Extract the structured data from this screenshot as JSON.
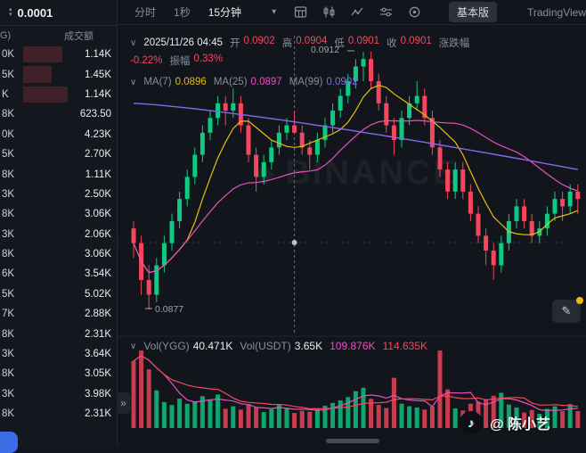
{
  "colors": {
    "up": "#0ecb81",
    "down": "#f6465d",
    "ma7": "#e8bd0d",
    "ma25": "#e750c0",
    "ma99": "#8567e8",
    "vol_ma1": "#e750c0",
    "vol_ma2": "#f6465d",
    "accent_yellow": "#f0b90b",
    "text": "#e9edf2",
    "muted": "#848e9c"
  },
  "icons": {
    "chevron_down": "∨",
    "caret_down": "▾",
    "sort_up": "▴",
    "sort_down": "▾",
    "expand": "»",
    "edit": "✎",
    "note": "♪",
    "diamond": "◆"
  },
  "left_panel": {
    "tick_value": "0.0001",
    "header": {
      "col1_fragment": "G)",
      "col2": "成交额"
    },
    "rows": [
      {
        "amount_fragment": "0K",
        "turnover": "1.14K",
        "depth": 44
      },
      {
        "amount_fragment": "5K",
        "turnover": "1.45K",
        "depth": 32
      },
      {
        "amount_fragment": "K",
        "turnover": "1.14K",
        "depth": 50
      },
      {
        "amount_fragment": "8K",
        "turnover": "623.50",
        "depth": 0
      },
      {
        "amount_fragment": "0K",
        "turnover": "4.23K",
        "depth": 0
      },
      {
        "amount_fragment": "5K",
        "turnover": "2.70K",
        "depth": 0
      },
      {
        "amount_fragment": "8K",
        "turnover": "1.11K",
        "depth": 0
      },
      {
        "amount_fragment": "3K",
        "turnover": "2.50K",
        "depth": 0
      },
      {
        "amount_fragment": "8K",
        "turnover": "3.06K",
        "depth": 0
      },
      {
        "amount_fragment": "3K",
        "turnover": "2.06K",
        "depth": 0
      },
      {
        "amount_fragment": "8K",
        "turnover": "3.06K",
        "depth": 0
      },
      {
        "amount_fragment": "6K",
        "turnover": "3.54K",
        "depth": 0
      },
      {
        "amount_fragment": "5K",
        "turnover": "5.02K",
        "depth": 0
      },
      {
        "amount_fragment": "7K",
        "turnover": "2.88K",
        "depth": 0
      },
      {
        "amount_fragment": "8K",
        "turnover": "2.31K",
        "depth": 0
      },
      {
        "amount_fragment": "3K",
        "turnover": "3.64K",
        "depth": 0
      },
      {
        "amount_fragment": "8K",
        "turnover": "3.05K",
        "depth": 0
      },
      {
        "amount_fragment": "3K",
        "turnover": "3.98K",
        "depth": 0
      },
      {
        "amount_fragment": "8K",
        "turnover": "2.31K",
        "depth": 0
      }
    ]
  },
  "toolbar": {
    "intervals": [
      "分时",
      "1秒",
      "15分钟"
    ],
    "selected": "15分钟",
    "basic_button": "基本版",
    "trading_tab": "TradingView"
  },
  "ohlc": {
    "datetime": "2025/11/26 04:45",
    "open_label": "开",
    "open": "0.0902",
    "high_label": "高",
    "high": "0.0904",
    "low_label": "低",
    "low": "0.0901",
    "close_label": "收",
    "close": "0.0901",
    "change_label": "涨跌幅",
    "change": "-0.22%",
    "amplitude_label": "振幅",
    "amplitude": "0.33%"
  },
  "ma": {
    "ma7_label": "MA(7)",
    "ma7": "0.0896",
    "ma25_label": "MA(25)",
    "ma25": "0.0897",
    "ma99_label": "MA(99)",
    "ma99": "0.0902"
  },
  "annotations": {
    "high": "0.0912",
    "low": "0.0877",
    "watermark": "BINANCE"
  },
  "volume_header": {
    "vol_label": "Vol(YGG)",
    "vol": "40.471K",
    "vol_usdt_label": "Vol(USDT)",
    "vol_usdt": "3.65K",
    "vol_ma1": "109.876K",
    "vol_ma2": "114.635K"
  },
  "watermark_badge": {
    "text": "@ 陈小艺"
  },
  "chart_data": {
    "type": "candlestick",
    "interval": "15分钟",
    "price_range": [
      0.0875,
      0.0914
    ],
    "marked_high": 0.0912,
    "marked_low": 0.0877,
    "crosshair_index": 21,
    "candles_format": "[open, high, low, close, volume_k]",
    "candles": [
      [
        0.0888,
        0.0889,
        0.0884,
        0.0886,
        160
      ],
      [
        0.0886,
        0.0887,
        0.0879,
        0.0881,
        185
      ],
      [
        0.0881,
        0.0883,
        0.0877,
        0.0879,
        140
      ],
      [
        0.0879,
        0.0884,
        0.0878,
        0.0883,
        90
      ],
      [
        0.0883,
        0.0887,
        0.0882,
        0.0886,
        62
      ],
      [
        0.0886,
        0.089,
        0.0885,
        0.0889,
        55
      ],
      [
        0.0889,
        0.0893,
        0.0888,
        0.0892,
        70
      ],
      [
        0.0892,
        0.0896,
        0.0891,
        0.0895,
        58
      ],
      [
        0.0895,
        0.0899,
        0.0894,
        0.0898,
        64
      ],
      [
        0.0898,
        0.0902,
        0.0897,
        0.0901,
        76
      ],
      [
        0.0901,
        0.0904,
        0.09,
        0.0903,
        68
      ],
      [
        0.0903,
        0.0906,
        0.0902,
        0.0905,
        80
      ],
      [
        0.0905,
        0.0906,
        0.0902,
        0.0904,
        46
      ],
      [
        0.0904,
        0.0907,
        0.0903,
        0.0905,
        52
      ],
      [
        0.0905,
        0.0906,
        0.0901,
        0.0902,
        44
      ],
      [
        0.0902,
        0.0903,
        0.0897,
        0.0898,
        57
      ],
      [
        0.0898,
        0.0899,
        0.0893,
        0.0895,
        49
      ],
      [
        0.0895,
        0.0898,
        0.0894,
        0.0897,
        38
      ],
      [
        0.0897,
        0.09,
        0.0896,
        0.0899,
        45
      ],
      [
        0.0899,
        0.0902,
        0.0898,
        0.0901,
        56
      ],
      [
        0.0901,
        0.0903,
        0.09,
        0.0902,
        48
      ],
      [
        0.0902,
        0.0904,
        0.0901,
        0.0901,
        36
      ],
      [
        0.0901,
        0.0902,
        0.0898,
        0.0899,
        41
      ],
      [
        0.0899,
        0.09,
        0.0896,
        0.0898,
        39
      ],
      [
        0.0898,
        0.0901,
        0.0897,
        0.09,
        47
      ],
      [
        0.09,
        0.0903,
        0.0899,
        0.0902,
        53
      ],
      [
        0.0902,
        0.0905,
        0.0901,
        0.0904,
        60
      ],
      [
        0.0904,
        0.0907,
        0.0903,
        0.0906,
        66
      ],
      [
        0.0906,
        0.0909,
        0.0905,
        0.0908,
        74
      ],
      [
        0.0908,
        0.0911,
        0.0907,
        0.091,
        88
      ],
      [
        0.091,
        0.0912,
        0.0908,
        0.0911,
        96
      ],
      [
        0.0911,
        0.0912,
        0.0907,
        0.0908,
        70
      ],
      [
        0.0908,
        0.0909,
        0.0904,
        0.0905,
        55
      ],
      [
        0.0905,
        0.0906,
        0.0901,
        0.0902,
        48
      ],
      [
        0.0902,
        0.0903,
        0.0898,
        0.09,
        120
      ],
      [
        0.09,
        0.0904,
        0.0899,
        0.0903,
        58
      ],
      [
        0.0903,
        0.0906,
        0.0902,
        0.0905,
        52
      ],
      [
        0.0905,
        0.0908,
        0.0904,
        0.0906,
        49
      ],
      [
        0.0906,
        0.0907,
        0.0902,
        0.0903,
        44
      ],
      [
        0.0903,
        0.0904,
        0.0898,
        0.0899,
        51
      ],
      [
        0.0899,
        0.09,
        0.0895,
        0.0896,
        185
      ],
      [
        0.0896,
        0.0897,
        0.0892,
        0.0893,
        92
      ],
      [
        0.0893,
        0.0897,
        0.0892,
        0.0896,
        47
      ],
      [
        0.0896,
        0.0897,
        0.0892,
        0.0893,
        42
      ],
      [
        0.0893,
        0.0894,
        0.0889,
        0.089,
        58
      ],
      [
        0.089,
        0.0891,
        0.0886,
        0.0887,
        63
      ],
      [
        0.0887,
        0.0888,
        0.0883,
        0.0885,
        69
      ],
      [
        0.0885,
        0.0886,
        0.0881,
        0.0883,
        77
      ],
      [
        0.0883,
        0.0887,
        0.0882,
        0.0886,
        84
      ],
      [
        0.0886,
        0.089,
        0.0885,
        0.0889,
        56
      ],
      [
        0.0889,
        0.0892,
        0.0888,
        0.0891,
        49
      ],
      [
        0.0891,
        0.0892,
        0.0888,
        0.0889,
        37
      ],
      [
        0.0889,
        0.089,
        0.0886,
        0.0887,
        43
      ],
      [
        0.0887,
        0.0889,
        0.0886,
        0.0888,
        34
      ],
      [
        0.0888,
        0.0891,
        0.0887,
        0.089,
        46
      ],
      [
        0.089,
        0.0893,
        0.0889,
        0.0892,
        52
      ],
      [
        0.0892,
        0.0893,
        0.0889,
        0.0891,
        40
      ],
      [
        0.0891,
        0.0894,
        0.089,
        0.0893,
        57
      ],
      [
        0.0893,
        0.0894,
        0.089,
        0.0892,
        40.471
      ]
    ],
    "ma99_guide": {
      "start": 0.0905,
      "end": 0.0896,
      "power": 1.25
    }
  }
}
